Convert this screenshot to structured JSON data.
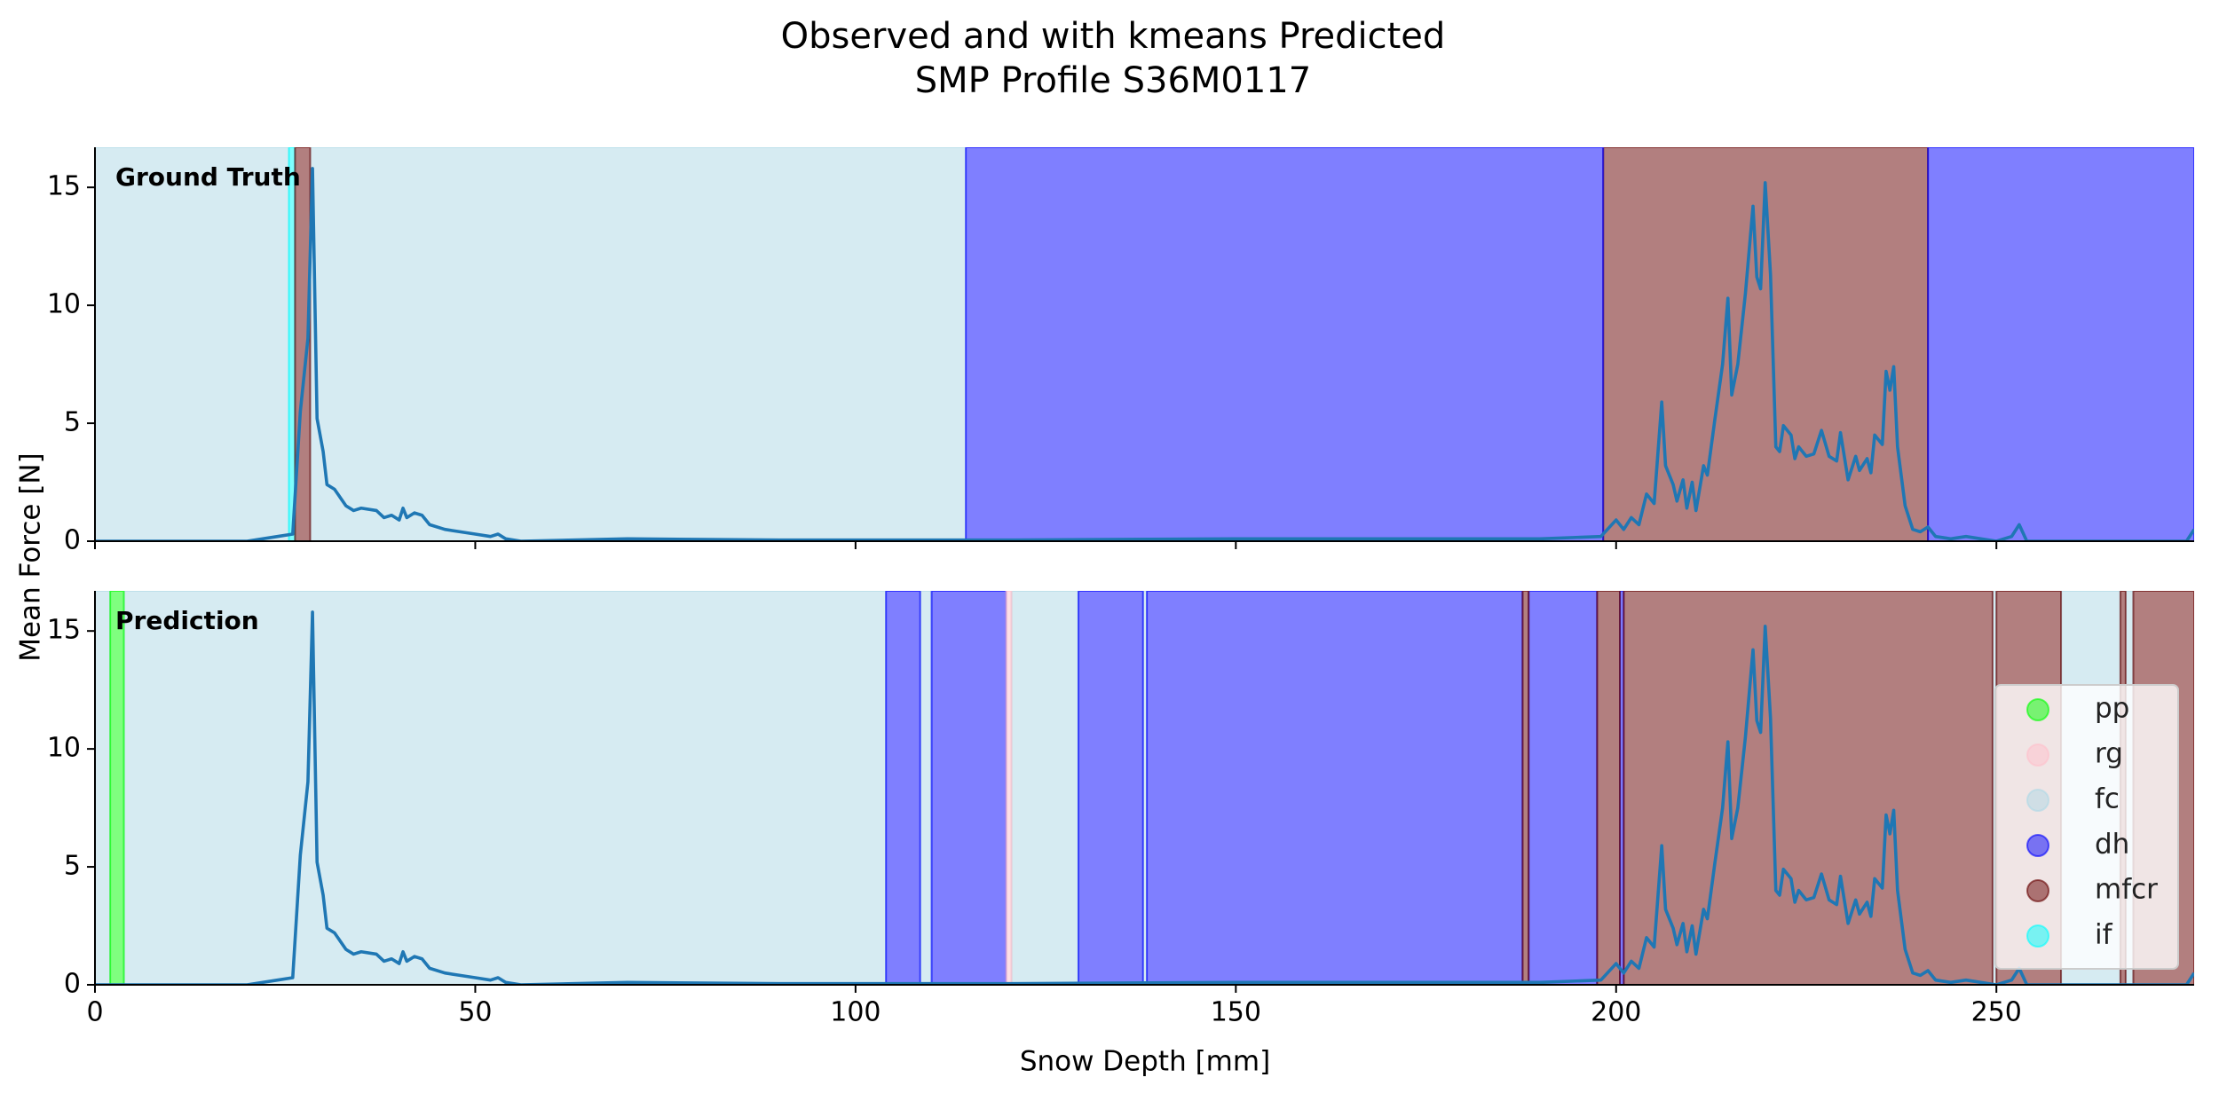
{
  "chart_data": {
    "type": "line",
    "title": [
      "Observed and with kmeans Predicted",
      "SMP Profile S36M0117"
    ],
    "xlabel": "Snow Depth [mm]",
    "ylabel": "Mean Force [N]",
    "xlim": [
      0,
      276
    ],
    "xticks": [
      0,
      50,
      100,
      150,
      200,
      250
    ],
    "ylim": [
      0,
      16.7
    ],
    "yticks": [
      0,
      5,
      10,
      15
    ],
    "line_color": "#1f77b4",
    "band_alpha": 0.5,
    "x": [
      0,
      10,
      20,
      24,
      26,
      27,
      28,
      28.6,
      29.2,
      30,
      30.5,
      31.5,
      33,
      34,
      35,
      37,
      38,
      39,
      40,
      40.5,
      41,
      42,
      43,
      44,
      46,
      48,
      50,
      52,
      53,
      54,
      56,
      70,
      90,
      120,
      150,
      190,
      198,
      200,
      201,
      202,
      203,
      204,
      205,
      206,
      206.5,
      207.5,
      208,
      208.8,
      209.3,
      210,
      210.5,
      211.5,
      212,
      213,
      214,
      214.7,
      215.2,
      216,
      217,
      218,
      218.5,
      219,
      219.6,
      220.3,
      221,
      221.5,
      222,
      223,
      223.5,
      224,
      225,
      226,
      227,
      228,
      229,
      229.5,
      230.5,
      231.5,
      232,
      233,
      233.5,
      234,
      235,
      235.5,
      236,
      236.5,
      237,
      238,
      239,
      240,
      241,
      242,
      244,
      246,
      250,
      252,
      253,
      254,
      260,
      275,
      276
    ],
    "values": [
      0,
      0,
      0,
      0.2,
      0.3,
      5.5,
      8.6,
      15.8,
      5.2,
      3.8,
      2.4,
      2.2,
      1.5,
      1.3,
      1.4,
      1.3,
      1.0,
      1.1,
      0.9,
      1.4,
      1.0,
      1.2,
      1.1,
      0.7,
      0.5,
      0.4,
      0.3,
      0.2,
      0.3,
      0.1,
      0,
      0.1,
      0.05,
      0.05,
      0.1,
      0.1,
      0.2,
      0.9,
      0.5,
      1.0,
      0.7,
      2.0,
      1.6,
      5.9,
      3.2,
      2.4,
      1.7,
      2.6,
      1.4,
      2.5,
      1.3,
      3.2,
      2.8,
      5.2,
      7.5,
      10.3,
      6.2,
      7.5,
      10.5,
      14.2,
      11.2,
      10.7,
      15.2,
      11.3,
      4.0,
      3.8,
      4.9,
      4.5,
      3.5,
      4.0,
      3.6,
      3.7,
      4.7,
      3.6,
      3.4,
      4.6,
      2.6,
      3.6,
      3.0,
      3.5,
      2.9,
      4.5,
      4.1,
      7.2,
      6.4,
      7.4,
      4.0,
      1.5,
      0.5,
      0.4,
      0.6,
      0.2,
      0.1,
      0.2,
      0,
      0.2,
      0.7,
      0,
      0,
      0,
      0.5
    ],
    "legend": {
      "loc": "lower right",
      "items": [
        {
          "name": "pp",
          "color": "#00ff00"
        },
        {
          "name": "rg",
          "color": "#ffc0cb"
        },
        {
          "name": "fc",
          "color": "#add8e6"
        },
        {
          "name": "dh",
          "color": "#0000ff"
        },
        {
          "name": "mfcr",
          "color": "#660000"
        },
        {
          "name": "if",
          "color": "#00ffff"
        }
      ]
    },
    "panels": [
      {
        "annotation": "Ground Truth",
        "segments": {
          "fc": [
            [
              0,
              25.5
            ],
            [
              28.3,
              114.5
            ]
          ],
          "if": [
            [
              25.5,
              26.3
            ]
          ],
          "mfcr": [
            [
              26.3,
              28.3
            ],
            [
              198.3,
              241
            ]
          ],
          "dh": [
            [
              114.5,
              198.3
            ],
            [
              241,
              276
            ]
          ]
        }
      },
      {
        "annotation": "Prediction",
        "segments": {
          "fc": [
            [
              0,
              2
            ],
            [
              3.8,
              104
            ],
            [
              108.5,
              110
            ],
            [
              120.5,
              129.3
            ],
            [
              137.8,
              138.3
            ],
            [
              249.5,
              250
            ],
            [
              258.5,
              266.3
            ],
            [
              267,
              268
            ]
          ],
          "pp": [
            [
              2,
              3.8
            ]
          ],
          "dh": [
            [
              104,
              108.5
            ],
            [
              110,
              119.8
            ],
            [
              129.3,
              137.8
            ],
            [
              138.3,
              187.7
            ],
            [
              188.5,
              197.5
            ],
            [
              200.5,
              201
            ]
          ],
          "rg": [
            [
              119.8,
              120.5
            ]
          ],
          "mfcr": [
            [
              187.7,
              188.5
            ],
            [
              197.5,
              200.5
            ],
            [
              201,
              249.5
            ],
            [
              250,
              258.5
            ],
            [
              266.3,
              267
            ],
            [
              268,
              276
            ]
          ]
        }
      }
    ]
  }
}
